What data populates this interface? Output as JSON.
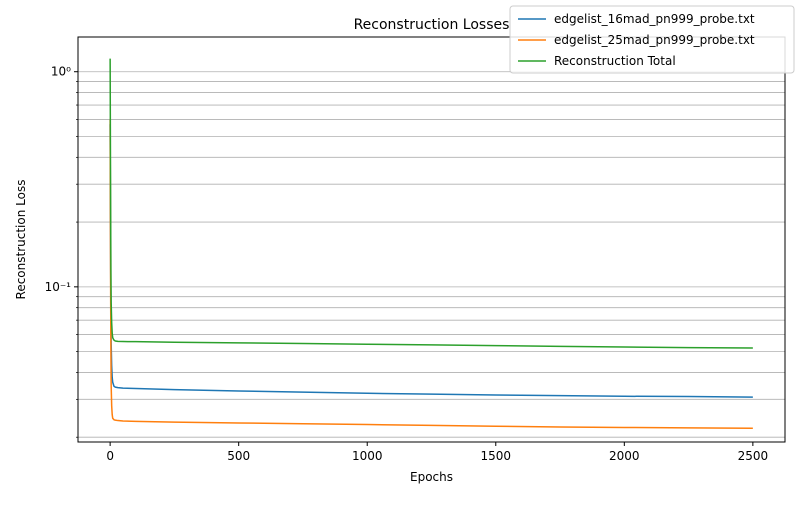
{
  "chart_data": {
    "type": "line",
    "title": "Reconstruction Losses",
    "xlabel": "Epochs",
    "ylabel": "Reconstruction Loss",
    "xlim": [
      -125,
      2625
    ],
    "ylim": [
      0.019,
      1.45
    ],
    "yscale": "log",
    "grid": "y-major-and-minor",
    "legend_position": "top-right",
    "x_ticks": [
      0,
      500,
      1000,
      1500,
      2000,
      2500
    ],
    "x_tick_labels": [
      "0",
      "500",
      "1000",
      "1500",
      "2000",
      "2500"
    ],
    "y_major_ticks": [
      0.1,
      1
    ],
    "y_major_tick_labels": [
      "10⁻¹",
      "10⁰"
    ],
    "y_minor_ticks": [
      0.02,
      0.03,
      0.04,
      0.05,
      0.06,
      0.07,
      0.08,
      0.09,
      0.2,
      0.3,
      0.4,
      0.5,
      0.6,
      0.7,
      0.8,
      0.9
    ],
    "series": [
      {
        "name": "edgelist_16mad_pn999_probe.txt",
        "color": "#1f77b4",
        "x": [
          0,
          1,
          2,
          3,
          4,
          6,
          8,
          10,
          15,
          20,
          30,
          50,
          100,
          250,
          500,
          750,
          1000,
          1250,
          1500,
          1750,
          2000,
          2250,
          2500
        ],
        "y": [
          0.57,
          0.25,
          0.12,
          0.075,
          0.055,
          0.043,
          0.038,
          0.036,
          0.0345,
          0.0342,
          0.034,
          0.0338,
          0.0337,
          0.0333,
          0.0328,
          0.0324,
          0.032,
          0.0317,
          0.0314,
          0.0312,
          0.031,
          0.0309,
          0.0307
        ]
      },
      {
        "name": "edgelist_25mad_pn999_probe.txt",
        "color": "#ff7f0e",
        "x": [
          0,
          1,
          2,
          3,
          4,
          6,
          8,
          10,
          15,
          20,
          30,
          50,
          100,
          250,
          500,
          750,
          1000,
          1250,
          1500,
          1750,
          2000,
          2250,
          2500
        ],
        "y": [
          0.6,
          0.22,
          0.09,
          0.05,
          0.035,
          0.028,
          0.0255,
          0.0245,
          0.0241,
          0.024,
          0.0239,
          0.0238,
          0.0237,
          0.0235,
          0.0233,
          0.0231,
          0.0229,
          0.0227,
          0.0225,
          0.0223,
          0.0222,
          0.0221,
          0.022
        ]
      },
      {
        "name": "Reconstruction Total",
        "color": "#2ca02c",
        "x": [
          0,
          1,
          2,
          3,
          4,
          6,
          8,
          10,
          15,
          20,
          30,
          50,
          100,
          250,
          500,
          750,
          1000,
          1250,
          1500,
          1750,
          2000,
          2250,
          2500
        ],
        "y": [
          1.15,
          0.5,
          0.22,
          0.12,
          0.085,
          0.068,
          0.061,
          0.058,
          0.0565,
          0.056,
          0.0558,
          0.0557,
          0.0556,
          0.0553,
          0.0549,
          0.0545,
          0.0541,
          0.0537,
          0.0533,
          0.0529,
          0.0525,
          0.0522,
          0.052
        ]
      }
    ]
  }
}
